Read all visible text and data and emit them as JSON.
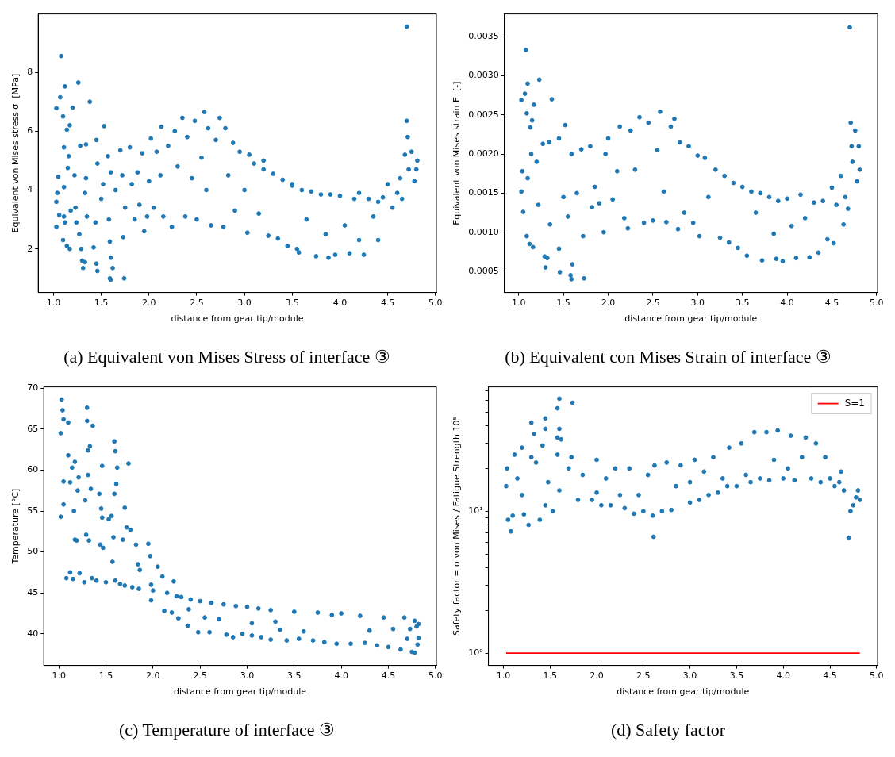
{
  "chart_data": [
    {
      "type": "scatter",
      "title": "(a) Equivalent von Mises Stress of interface ③",
      "xlabel": "distance from gear tip/module",
      "ylabel": "Equivalent von Mises stress σ  [MPa]",
      "xlim": [
        0.84,
        5.01
      ],
      "xticks": [
        {
          "value": 1,
          "label": "1.0"
        },
        {
          "value": 1.5,
          "label": "1.5"
        },
        {
          "value": 2,
          "label": "2.0"
        },
        {
          "value": 2.5,
          "label": "2.5"
        },
        {
          "value": 3,
          "label": "3.0"
        },
        {
          "value": 3.5,
          "label": "3.5"
        },
        {
          "value": 4,
          "label": "4.0"
        },
        {
          "value": 4.5,
          "label": "4.5"
        },
        {
          "value": 5,
          "label": "5.0"
        }
      ],
      "ylim": [
        0.52,
        9.98
      ],
      "yticks": [
        2,
        4,
        6,
        8
      ],
      "marker": "circle",
      "legend": false,
      "series": [
        {
          "color": "#1f77b4",
          "x": [
            1.03,
            1.08,
            1.07,
            1.1,
            1.12,
            1.2,
            1.26,
            1.38,
            1.53,
            1.17,
            1.14,
            1.03,
            1.04,
            1.05,
            1.03,
            1.06,
            1.1,
            1.11,
            1.11,
            1.12,
            1.11,
            1.15,
            1.16,
            1.14,
            1.17,
            1.18,
            1.22,
            1.23,
            1.24,
            1.27,
            1.28,
            1.29,
            1.3,
            1.31,
            1.33,
            1.33,
            1.34,
            1.34,
            1.35,
            1.42,
            1.44,
            1.45,
            1.45,
            1.46,
            1.46,
            1.5,
            1.52,
            1.57,
            1.58,
            1.59,
            1.59,
            1.6,
            1.6,
            1.62,
            1.6,
            1.65,
            1.7,
            1.72,
            1.73,
            1.74,
            1.75,
            1.8,
            1.82,
            1.85,
            1.88,
            1.9,
            1.93,
            1.95,
            1.98,
            2.0,
            2.02,
            2.05,
            2.08,
            2.12,
            2.13,
            2.15,
            2.2,
            2.24,
            2.27,
            2.3,
            2.35,
            2.38,
            2.4,
            2.45,
            2.48,
            2.5,
            2.55,
            2.58,
            2.6,
            2.62,
            2.65,
            2.7,
            2.74,
            2.78,
            2.8,
            2.83,
            2.88,
            2.9,
            2.95,
            3.0,
            3.03,
            3.05,
            3.1,
            3.15,
            3.2,
            3.2,
            3.25,
            3.3,
            3.35,
            3.4,
            3.45,
            3.5,
            3.5,
            3.55,
            3.57,
            3.6,
            3.65,
            3.7,
            3.75,
            3.8,
            3.85,
            3.88,
            3.9,
            3.95,
            4.0,
            4.05,
            4.1,
            4.15,
            4.2,
            4.2,
            4.25,
            4.3,
            4.35,
            4.4,
            4.4,
            4.45,
            4.5,
            4.55,
            4.6,
            4.63,
            4.65,
            4.68,
            4.7,
            4.7,
            4.71,
            4.72,
            4.75,
            4.78,
            4.8,
            4.81
          ],
          "values": [
            6.78,
            8.55,
            7.15,
            6.5,
            7.52,
            6.8,
            7.65,
            7.0,
            6.17,
            6.2,
            6.05,
            3.6,
            3.9,
            4.45,
            2.75,
            3.15,
            2.3,
            4.1,
            3.1,
            2.9,
            5.45,
            4.75,
            5.15,
            2.1,
            2.0,
            3.3,
            4.5,
            3.4,
            2.9,
            2.5,
            5.5,
            2.0,
            1.6,
            1.35,
            1.55,
            3.9,
            4.4,
            5.55,
            3.1,
            2.05,
            2.9,
            5.7,
            1.5,
            1.25,
            4.9,
            3.7,
            4.2,
            5.15,
            3.0,
            2.25,
            1.0,
            0.95,
            1.7,
            1.35,
            4.6,
            4.0,
            5.35,
            4.5,
            2.4,
            1.0,
            3.4,
            5.45,
            4.2,
            3.0,
            4.6,
            3.5,
            5.25,
            2.6,
            3.1,
            4.3,
            5.75,
            3.4,
            5.3,
            4.5,
            6.15,
            3.1,
            5.5,
            2.75,
            6.0,
            4.8,
            6.45,
            3.1,
            5.8,
            4.4,
            6.35,
            3.0,
            5.1,
            6.65,
            4.0,
            6.1,
            2.8,
            5.7,
            6.45,
            2.75,
            6.1,
            4.5,
            5.6,
            3.3,
            5.3,
            4.0,
            2.55,
            5.2,
            4.9,
            3.2,
            4.7,
            5.0,
            2.45,
            4.55,
            2.35,
            4.35,
            2.1,
            4.15,
            4.2,
            2.0,
            1.88,
            4.0,
            3.0,
            3.95,
            1.75,
            3.85,
            2.5,
            1.7,
            3.85,
            1.8,
            3.8,
            2.8,
            1.85,
            3.7,
            2.3,
            3.9,
            1.8,
            3.7,
            3.1,
            2.3,
            3.6,
            3.75,
            4.2,
            3.4,
            3.9,
            4.4,
            3.7,
            5.2,
            9.55,
            6.35,
            5.8,
            4.7,
            5.3,
            4.3,
            4.7,
            5.0
          ]
        }
      ]
    },
    {
      "type": "scatter",
      "title": "(b) Equivalent con Mises Strain of interface ③",
      "xlabel": "distance from gear tip/module",
      "ylabel": "Equivalent von Mises strain E  [-]",
      "xlim": [
        0.84,
        5.01
      ],
      "xticks": [
        {
          "value": 1,
          "label": "1.0"
        },
        {
          "value": 1.5,
          "label": "1.5"
        },
        {
          "value": 2,
          "label": "2.0"
        },
        {
          "value": 2.5,
          "label": "2.5"
        },
        {
          "value": 3,
          "label": "3.0"
        },
        {
          "value": 3.5,
          "label": "3.5"
        },
        {
          "value": 4,
          "label": "4.0"
        },
        {
          "value": 4.5,
          "label": "4.5"
        },
        {
          "value": 5,
          "label": "5.0"
        }
      ],
      "ylim": [
        0.00023,
        0.00379
      ],
      "yticks": [
        {
          "value": 0.0005,
          "label": "0.0005"
        },
        {
          "value": 0.001,
          "label": "0.0010"
        },
        {
          "value": 0.0015,
          "label": "0.0015"
        },
        {
          "value": 0.002,
          "label": "0.0020"
        },
        {
          "value": 0.0025,
          "label": "0.0025"
        },
        {
          "value": 0.003,
          "label": "0.0030"
        },
        {
          "value": 0.0035,
          "label": "0.0035"
        }
      ],
      "marker": "circle",
      "legend": false,
      "series": [
        {
          "color": "#1f77b4",
          "x": [
            1.03,
            1.08,
            1.07,
            1.1,
            1.09,
            1.17,
            1.23,
            1.37,
            1.52,
            1.13,
            1.15,
            1.03,
            1.04,
            1.05,
            1.09,
            1.1,
            1.12,
            1.14,
            1.16,
            1.2,
            1.22,
            1.27,
            1.29,
            1.3,
            1.32,
            1.34,
            1.35,
            1.45,
            1.45,
            1.46,
            1.5,
            1.55,
            1.58,
            1.59,
            1.6,
            1.59,
            1.65,
            1.7,
            1.72,
            1.73,
            1.8,
            1.82,
            1.85,
            1.9,
            1.95,
            1.97,
            2.0,
            2.05,
            2.1,
            2.13,
            2.18,
            2.22,
            2.25,
            2.3,
            2.35,
            2.4,
            2.45,
            2.5,
            2.55,
            2.58,
            2.62,
            2.65,
            2.7,
            2.74,
            2.78,
            2.8,
            2.85,
            2.9,
            2.95,
            3.0,
            3.02,
            3.08,
            3.12,
            3.2,
            3.25,
            3.3,
            3.35,
            3.4,
            3.45,
            3.5,
            3.55,
            3.6,
            3.65,
            3.7,
            3.72,
            3.8,
            3.85,
            3.88,
            3.9,
            3.95,
            4.0,
            4.05,
            4.1,
            4.15,
            4.2,
            4.25,
            4.3,
            4.35,
            4.4,
            4.45,
            4.5,
            4.52,
            4.55,
            4.6,
            4.63,
            4.65,
            4.68,
            4.7,
            4.71,
            4.72,
            4.73,
            4.76,
            4.78,
            4.8,
            4.81
          ],
          "values": [
            0.00269,
            0.00333,
            0.00277,
            0.0029,
            0.00252,
            0.00263,
            0.00295,
            0.0027,
            0.00237,
            0.00234,
            0.00243,
            0.00152,
            0.00178,
            0.00126,
            0.00095,
            0.00169,
            0.00085,
            0.002,
            0.00081,
            0.0019,
            0.00135,
            0.00213,
            0.00069,
            0.00055,
            0.00067,
            0.00215,
            0.0011,
            0.0022,
            0.00079,
            0.00049,
            0.00145,
            0.0012,
            0.00045,
            0.0004,
            0.00059,
            0.002,
            0.0015,
            0.00206,
            0.00095,
            0.00041,
            0.0021,
            0.00132,
            0.00158,
            0.00137,
            0.001,
            0.002,
            0.0022,
            0.00142,
            0.00178,
            0.00235,
            0.00118,
            0.00105,
            0.0023,
            0.0018,
            0.00247,
            0.00112,
            0.0024,
            0.00115,
            0.00205,
            0.00254,
            0.00152,
            0.00113,
            0.00235,
            0.00245,
            0.00104,
            0.00215,
            0.00125,
            0.0021,
            0.00112,
            0.00198,
            0.00095,
            0.00195,
            0.00145,
            0.0018,
            0.00093,
            0.00172,
            0.00087,
            0.00163,
            0.0008,
            0.00158,
            0.0007,
            0.00152,
            0.00125,
            0.0015,
            0.00064,
            0.00145,
            0.00098,
            0.00066,
            0.0014,
            0.00063,
            0.00143,
            0.00108,
            0.00067,
            0.00148,
            0.00118,
            0.00068,
            0.00138,
            0.00074,
            0.0014,
            0.00091,
            0.00157,
            0.00086,
            0.00135,
            0.00172,
            0.0011,
            0.00145,
            0.0013,
            0.00362,
            0.0024,
            0.0021,
            0.0019,
            0.0023,
            0.00165,
            0.0021,
            0.0018
          ]
        }
      ]
    },
    {
      "type": "scatter",
      "title": "(c) Temperature of interface ③",
      "xlabel": "distance from gear tip/module",
      "ylabel": "Temperature [°C]",
      "xlim": [
        0.84,
        5.01
      ],
      "xticks": [
        {
          "value": 1,
          "label": "1.0"
        },
        {
          "value": 1.5,
          "label": "1.5"
        },
        {
          "value": 2,
          "label": "2.0"
        },
        {
          "value": 2.5,
          "label": "2.5"
        },
        {
          "value": 3,
          "label": "3.0"
        },
        {
          "value": 3.5,
          "label": "3.5"
        },
        {
          "value": 4,
          "label": "4.0"
        },
        {
          "value": 4.5,
          "label": "4.5"
        },
        {
          "value": 5,
          "label": "5.0"
        }
      ],
      "ylim": [
        36.15,
        70.15
      ],
      "yticks": [
        40,
        45,
        50,
        55,
        60,
        65,
        70
      ],
      "marker": "circle",
      "legend": false,
      "series": [
        {
          "color": "#1f77b4",
          "x": [
            1.02,
            1.02,
            1.03,
            1.04,
            1.05,
            1.05,
            1.05,
            1.1,
            1.1,
            1.12,
            1.14,
            1.16,
            1.17,
            1.17,
            1.19,
            1.2,
            1.21,
            1.08,
            1.12,
            1.15,
            1.22,
            1.27,
            1.28,
            1.29,
            1.3,
            1.3,
            1.31,
            1.31,
            1.32,
            1.33,
            1.34,
            1.36,
            1.35,
            1.4,
            1.43,
            1.44,
            1.45,
            1.46,
            1.46,
            1.47,
            1.5,
            1.53,
            1.56,
            1.57,
            1.58,
            1.59,
            1.59,
            1.6,
            1.62,
            1.61,
            1.6,
            1.65,
            1.68,
            1.7,
            1.72,
            1.74,
            1.76,
            1.7,
            1.78,
            1.82,
            1.84,
            1.86,
            1.85,
            1.95,
            1.97,
            1.98,
            1.98,
            2.0,
            2.05,
            2.1,
            2.12,
            2.15,
            2.2,
            2.22,
            2.25,
            2.27,
            2.3,
            2.37,
            2.38,
            2.4,
            2.48,
            2.5,
            2.55,
            2.6,
            2.62,
            2.7,
            2.75,
            2.78,
            2.85,
            2.88,
            2.95,
            3.0,
            3.05,
            3.05,
            3.12,
            3.15,
            3.25,
            3.25,
            3.3,
            3.35,
            3.42,
            3.5,
            3.55,
            3.6,
            3.7,
            3.75,
            3.82,
            3.9,
            3.95,
            4.0,
            4.1,
            4.2,
            4.25,
            4.3,
            4.38,
            4.45,
            4.5,
            4.55,
            4.63,
            4.67,
            4.7,
            4.73,
            4.75,
            4.78,
            4.78,
            4.8,
            4.81,
            4.82,
            4.82
          ],
          "values": [
            54.3,
            64.5,
            68.6,
            67.3,
            66.2,
            58.6,
            55.8,
            65.8,
            61.8,
            58.5,
            60.3,
            55.0,
            61.0,
            51.5,
            51.4,
            57.5,
            59.1,
            46.8,
            47.5,
            46.7,
            47.4,
            46.3,
            56.3,
            52.1,
            67.6,
            66.0,
            59.4,
            62.4,
            51.4,
            62.9,
            57.7,
            65.4,
            46.8,
            46.5,
            57.1,
            50.9,
            55.3,
            60.5,
            54.2,
            50.5,
            46.3,
            54.0,
            54.4,
            48.8,
            51.8,
            63.5,
            57.1,
            62.3,
            60.3,
            58.3,
            46.5,
            46.1,
            51.5,
            55.4,
            53.0,
            60.8,
            52.7,
            45.9,
            45.7,
            50.9,
            48.5,
            47.8,
            45.5,
            51.0,
            49.5,
            44.1,
            46.0,
            45.3,
            48.2,
            47.0,
            42.8,
            45.0,
            42.6,
            46.4,
            44.6,
            41.9,
            44.5,
            41.0,
            43.0,
            44.2,
            40.2,
            44.0,
            42.0,
            40.2,
            43.8,
            41.8,
            43.6,
            39.9,
            39.6,
            43.4,
            40.0,
            43.3,
            39.8,
            41.3,
            43.1,
            39.6,
            39.3,
            42.9,
            41.5,
            40.5,
            39.2,
            42.7,
            39.4,
            40.3,
            39.2,
            42.6,
            39.0,
            42.3,
            38.8,
            42.5,
            38.8,
            42.2,
            38.9,
            40.4,
            38.6,
            42.0,
            38.4,
            40.6,
            38.1,
            42.0,
            39.4,
            40.6,
            37.8,
            41.6,
            37.7,
            40.9,
            38.7,
            39.5,
            41.2
          ]
        }
      ]
    },
    {
      "type": "scatter",
      "title": "(d) Safety factor",
      "xlabel": "distance from gear tip/module",
      "ylabel": "Safety factor = σ von Mises / Fatigue Strength 10⁵",
      "xlim": [
        0.84,
        5.01
      ],
      "xticks": [
        {
          "value": 1,
          "label": "1.0"
        },
        {
          "value": 1.5,
          "label": "1.5"
        },
        {
          "value": 2,
          "label": "2.0"
        },
        {
          "value": 2.5,
          "label": "2.5"
        },
        {
          "value": 3,
          "label": "3.0"
        },
        {
          "value": 3.5,
          "label": "3.5"
        },
        {
          "value": 4,
          "label": "4.0"
        },
        {
          "value": 4.5,
          "label": "4.5"
        },
        {
          "value": 5,
          "label": "5.0"
        }
      ],
      "ylim": [
        0.82,
        75
      ],
      "yticks": [
        {
          "value": 1,
          "label": "10⁰"
        },
        {
          "value": 2,
          "label": null
        },
        {
          "value": 3,
          "label": null
        },
        {
          "value": 4,
          "label": null
        },
        {
          "value": 5,
          "label": null
        },
        {
          "value": 6,
          "label": null
        },
        {
          "value": 7,
          "label": null
        },
        {
          "value": 8,
          "label": null
        },
        {
          "value": 9,
          "label": null
        },
        {
          "value": 10,
          "label": "10¹"
        },
        {
          "value": 20,
          "label": null
        },
        {
          "value": 30,
          "label": null
        },
        {
          "value": 40,
          "label": null
        },
        {
          "value": 50,
          "label": null
        },
        {
          "value": 60,
          "label": null
        },
        {
          "value": 70,
          "label": null
        }
      ],
      "log": "y",
      "marker": "circle",
      "legend": "top right",
      "series": [
        {
          "color": "#1f77b4",
          "x": [
            1.6,
            1.74,
            1.58,
            1.45,
            1.3,
            1.45,
            1.33,
            1.6,
            1.62,
            1.42,
            1.58,
            1.2,
            1.03,
            1.04,
            1.05,
            1.08,
            1.1,
            1.12,
            1.15,
            1.2,
            1.22,
            1.27,
            1.3,
            1.35,
            1.39,
            1.45,
            1.48,
            1.53,
            1.58,
            1.6,
            1.7,
            1.73,
            1.8,
            1.85,
            1.95,
            2.0,
            2.0,
            2.05,
            2.1,
            2.15,
            2.2,
            2.25,
            2.3,
            2.35,
            2.4,
            2.45,
            2.5,
            2.55,
            2.6,
            2.61,
            2.62,
            2.7,
            2.75,
            2.8,
            2.85,
            2.9,
            3.0,
            3.0,
            3.05,
            3.1,
            3.15,
            3.2,
            3.25,
            3.3,
            3.35,
            3.4,
            3.42,
            3.5,
            3.55,
            3.6,
            3.65,
            3.69,
            3.75,
            3.82,
            3.85,
            3.9,
            3.94,
            4.0,
            4.05,
            4.08,
            4.12,
            4.2,
            4.24,
            4.3,
            4.35,
            4.4,
            4.45,
            4.5,
            4.55,
            4.6,
            4.62,
            4.65,
            4.7,
            4.72,
            4.75,
            4.78,
            4.8,
            4.82
          ],
          "values": [
            62,
            58,
            53,
            45,
            42,
            38,
            35,
            38,
            32,
            29,
            33,
            28,
            15,
            20,
            8.7,
            7.2,
            9.3,
            25,
            17,
            13,
            9.5,
            8.0,
            24,
            22,
            8.7,
            11,
            16,
            10,
            25,
            14,
            20,
            24,
            12,
            18,
            12,
            23,
            13.5,
            11,
            17,
            11,
            20,
            13,
            10.5,
            20,
            9.6,
            13,
            10,
            18,
            9.3,
            6.6,
            21,
            10,
            22,
            10.2,
            15,
            21,
            11.5,
            16,
            23,
            12,
            19,
            13,
            24,
            13.5,
            17,
            15,
            28,
            15,
            30,
            18,
            16,
            36,
            17,
            36,
            16.5,
            23,
            37,
            17,
            20,
            34,
            16.5,
            24,
            33,
            17,
            30,
            16,
            24,
            17,
            15,
            16,
            19,
            14,
            6.5,
            10,
            11,
            12.5,
            14,
            12
          ]
        },
        {
          "type": "line",
          "name": "S=1",
          "color": "#ff0000",
          "x": [
            1.03,
            4.82
          ],
          "values": [
            1,
            1
          ],
          "marker": "none"
        }
      ]
    }
  ]
}
